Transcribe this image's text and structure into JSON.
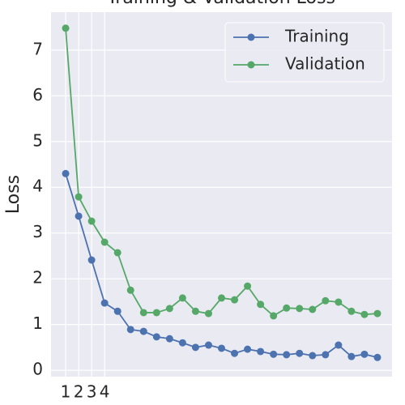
{
  "chart_data": {
    "type": "line",
    "title": "Training & Validation Loss",
    "ylabel": "Loss",
    "x": [
      1,
      2,
      3,
      4,
      5,
      6,
      7,
      8,
      9,
      10,
      11,
      12,
      13,
      14,
      15,
      16,
      17,
      18,
      19,
      20,
      21,
      22,
      23,
      24,
      25
    ],
    "series": [
      {
        "name": "Training",
        "color": "#4c72b0",
        "values": [
          4.3,
          3.37,
          2.41,
          1.47,
          1.29,
          0.89,
          0.85,
          0.73,
          0.69,
          0.6,
          0.5,
          0.55,
          0.48,
          0.37,
          0.46,
          0.41,
          0.35,
          0.34,
          0.37,
          0.32,
          0.34,
          0.55,
          0.3,
          0.35,
          0.28
        ]
      },
      {
        "name": "Validation",
        "color": "#55a868",
        "values": [
          7.48,
          3.79,
          3.26,
          2.8,
          2.57,
          1.75,
          1.26,
          1.26,
          1.35,
          1.58,
          1.29,
          1.24,
          1.58,
          1.54,
          1.84,
          1.44,
          1.19,
          1.36,
          1.35,
          1.33,
          1.52,
          1.49,
          1.29,
          1.22,
          1.24
        ]
      }
    ],
    "xlim": [
      -0.125,
      26.125
    ],
    "xticks": [
      1,
      2,
      3,
      4
    ],
    "ylim": [
      -0.14,
      7.83
    ],
    "yticks": [
      0,
      1,
      2,
      3,
      4,
      5,
      6,
      7
    ],
    "grid": true,
    "legend": "upper right"
  }
}
